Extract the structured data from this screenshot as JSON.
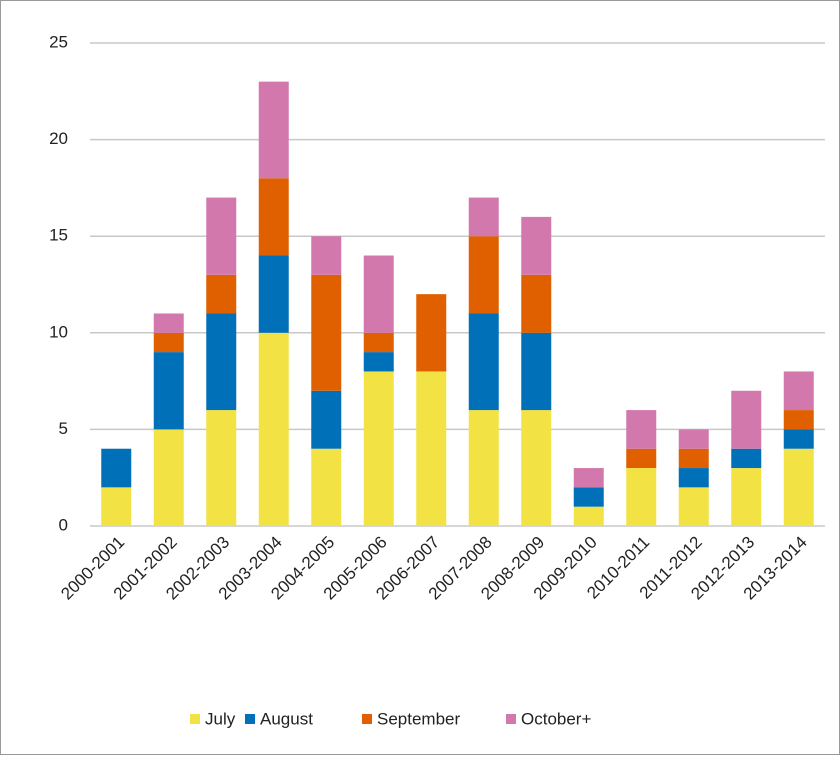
{
  "chart_data": {
    "type": "stacked_bar",
    "categories": [
      "2000-2001",
      "2001-2002",
      "2002-2003",
      "2003-2004",
      "2004-2005",
      "2005-2006",
      "2006-2007",
      "2007-2008",
      "2008-2009",
      "2009-2010",
      "2010-2011",
      "2011-2012",
      "2012-2013",
      "2013-2014"
    ],
    "series": [
      {
        "name": "July",
        "color": "#f2e244",
        "values": [
          2,
          5,
          6,
          10,
          4,
          8,
          8,
          6,
          6,
          1,
          3,
          2,
          3,
          4
        ]
      },
      {
        "name": "August",
        "color": "#0070b8",
        "values": [
          2,
          4,
          5,
          4,
          3,
          1,
          0,
          5,
          4,
          1,
          0,
          1,
          1,
          1
        ]
      },
      {
        "name": "September",
        "color": "#e06000",
        "values": [
          0,
          1,
          2,
          4,
          6,
          1,
          4,
          4,
          3,
          0,
          1,
          1,
          0,
          1
        ]
      },
      {
        "name": "October+",
        "color": "#d278ad",
        "values": [
          0,
          1,
          4,
          5,
          2,
          4,
          0,
          2,
          3,
          1,
          2,
          1,
          3,
          2
        ]
      }
    ],
    "ylim": [
      0,
      25
    ],
    "yticks": [
      0,
      5,
      10,
      15,
      20,
      25
    ],
    "grid": true,
    "legend": "bottom"
  }
}
